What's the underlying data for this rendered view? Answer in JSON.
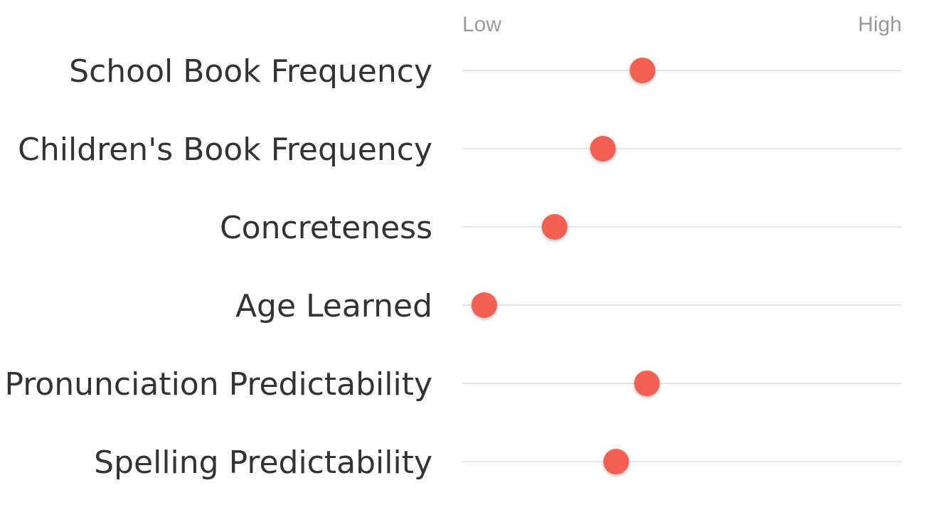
{
  "chart_data": {
    "type": "scatter",
    "scale_labels": {
      "low": "Low",
      "high": "High"
    },
    "xlim": [
      0,
      1
    ],
    "categories": [
      "School Book Frequency",
      "Children's Book Frequency",
      "Concreteness",
      "Age Learned",
      "Pronunciation Predictability",
      "Spelling Predictability"
    ],
    "values": [
      0.41,
      0.32,
      0.21,
      0.05,
      0.42,
      0.35
    ],
    "grid": false,
    "legend": "none"
  },
  "colors": {
    "dot": "#f25f52",
    "track": "#d6d6d6",
    "label": "#333333",
    "scale_label": "#9a9a9a"
  }
}
